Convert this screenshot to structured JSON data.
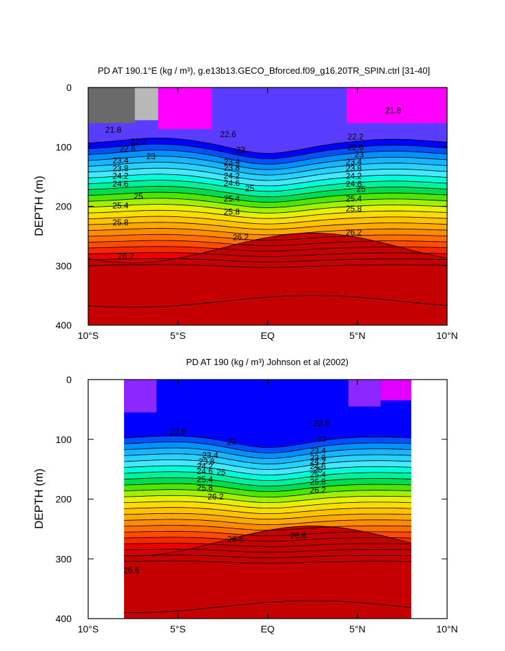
{
  "chart_data": [
    {
      "type": "contour",
      "title": "PD AT 190.1°E (kg / m³), g.e13b13.GECO_Bforced.f09_g16.20TR_SPIN.ctrl [31-40]",
      "ylabel": "DEPTH (m)",
      "xlabel": "",
      "x_ticks": [
        "10°S",
        "5°S",
        "EQ",
        "5°N",
        "10°N"
      ],
      "y_ticks": [
        "0",
        "100",
        "200",
        "300",
        "400"
      ],
      "xlim": [
        -10,
        10
      ],
      "ylim": [
        400,
        0
      ],
      "data_xlim": [
        -10,
        10
      ],
      "base_depth": 95,
      "base_value": 22.0,
      "gradient_per_m": 0.0205,
      "deep_bands": [
        [
          270,
          26.2
        ],
        [
          360,
          26.4
        ]
      ],
      "contour_labels": [
        {
          "text": "21.8",
          "x": -8.6,
          "d": 72
        },
        {
          "text": "21.8",
          "x": 7.0,
          "d": 40
        },
        {
          "text": "22.2",
          "x": -7.2,
          "d": 92
        },
        {
          "text": "22.2",
          "x": 4.9,
          "d": 84
        },
        {
          "text": "22.6",
          "x": -7.8,
          "d": 104
        },
        {
          "text": "22.6",
          "x": -2.2,
          "d": 80
        },
        {
          "text": "22.6",
          "x": 4.9,
          "d": 102
        },
        {
          "text": "23",
          "x": -6.5,
          "d": 117
        },
        {
          "text": "23",
          "x": -1.5,
          "d": 106
        },
        {
          "text": "23",
          "x": 5.1,
          "d": 114
        },
        {
          "text": "23.4",
          "x": -8.2,
          "d": 124
        },
        {
          "text": "23.4",
          "x": -2.0,
          "d": 126
        },
        {
          "text": "23.4",
          "x": 4.8,
          "d": 126
        },
        {
          "text": "23.8",
          "x": -8.2,
          "d": 137
        },
        {
          "text": "23.8",
          "x": -2.0,
          "d": 136
        },
        {
          "text": "23.8",
          "x": 4.8,
          "d": 137
        },
        {
          "text": "24.2",
          "x": -8.2,
          "d": 150
        },
        {
          "text": "24.2",
          "x": -2.0,
          "d": 150
        },
        {
          "text": "24.2",
          "x": 4.8,
          "d": 150
        },
        {
          "text": "24.6",
          "x": -8.2,
          "d": 163
        },
        {
          "text": "24.6",
          "x": -2.0,
          "d": 162
        },
        {
          "text": "24.6",
          "x": 4.8,
          "d": 163
        },
        {
          "text": "25",
          "x": -7.2,
          "d": 184
        },
        {
          "text": "25",
          "x": -1.0,
          "d": 171
        },
        {
          "text": "25",
          "x": 5.2,
          "d": 172
        },
        {
          "text": "25.4",
          "x": -8.2,
          "d": 200
        },
        {
          "text": "25.4",
          "x": -2.0,
          "d": 188
        },
        {
          "text": "25.4",
          "x": 4.8,
          "d": 188
        },
        {
          "text": "25.8",
          "x": -8.2,
          "d": 228
        },
        {
          "text": "25.8",
          "x": -2.0,
          "d": 210
        },
        {
          "text": "25.8",
          "x": 4.8,
          "d": 205
        },
        {
          "text": "26.2",
          "x": -7.9,
          "d": 285
        },
        {
          "text": "26.2",
          "x": -1.5,
          "d": 253
        },
        {
          "text": "26.2",
          "x": 4.8,
          "d": 245
        }
      ]
    },
    {
      "type": "contour",
      "title": "PD AT 190 (kg / m³) Johnson et al (2002)",
      "ylabel": "DEPTH (m)",
      "xlabel": "",
      "x_ticks": [
        "10°S",
        "5°S",
        "EQ",
        "5°N",
        "10°N"
      ],
      "y_ticks": [
        "0",
        "100",
        "200",
        "300",
        "400"
      ],
      "xlim": [
        -10,
        10
      ],
      "ylim": [
        400,
        0
      ],
      "data_xlim": [
        -8,
        8
      ],
      "base_depth": 100,
      "base_value": 22.3,
      "gradient_per_m": 0.0205,
      "deep_bands": [
        [
          270,
          26.6
        ],
        [
          380,
          26.8
        ]
      ],
      "contour_labels": [
        {
          "text": "22.6",
          "x": -5.0,
          "d": 88
        },
        {
          "text": "22.6",
          "x": 3.0,
          "d": 74
        },
        {
          "text": "23",
          "x": -2.0,
          "d": 105
        },
        {
          "text": "23",
          "x": 3.0,
          "d": 100
        },
        {
          "text": "23.4",
          "x": -3.2,
          "d": 128
        },
        {
          "text": "23.4",
          "x": 2.8,
          "d": 120
        },
        {
          "text": "23.8",
          "x": -3.4,
          "d": 138
        },
        {
          "text": "23.8",
          "x": 2.8,
          "d": 132
        },
        {
          "text": "24.2",
          "x": -3.5,
          "d": 146
        },
        {
          "text": "24.2",
          "x": 2.8,
          "d": 138
        },
        {
          "text": "24.6",
          "x": -3.5,
          "d": 154
        },
        {
          "text": "24.6",
          "x": 2.8,
          "d": 146
        },
        {
          "text": "25",
          "x": -2.6,
          "d": 156
        },
        {
          "text": "25",
          "x": 2.8,
          "d": 152
        },
        {
          "text": "25.4",
          "x": -3.5,
          "d": 168
        },
        {
          "text": "25.4",
          "x": 2.8,
          "d": 160
        },
        {
          "text": "25.8",
          "x": -3.5,
          "d": 182
        },
        {
          "text": "25.8",
          "x": 2.8,
          "d": 172
        },
        {
          "text": "26.2",
          "x": -2.9,
          "d": 197
        },
        {
          "text": "26.2",
          "x": 2.8,
          "d": 186
        },
        {
          "text": "26.6",
          "x": -1.8,
          "d": 268
        },
        {
          "text": "26.6",
          "x": 1.7,
          "d": 262
        },
        {
          "text": "26.6",
          "x": -7.6,
          "d": 320
        }
      ]
    }
  ],
  "colors": {
    "palette": [
      "#ff00ff",
      "#e100ff",
      "#b400f0",
      "#8c28ff",
      "#5a3cff",
      "#0000ff",
      "#0050ff",
      "#0090ff",
      "#18b4ff",
      "#28d2ff",
      "#46e8ff",
      "#00ffd8",
      "#00f09c",
      "#00dc50",
      "#4ee600",
      "#a0f000",
      "#e6f000",
      "#ffdc00",
      "#ffc300",
      "#ffaa00",
      "#ff8c00",
      "#ff6e00",
      "#ff4b00",
      "#f52800",
      "#ee0000",
      "#d70000",
      "#c40000"
    ],
    "cold_fill": "#6a6a6a",
    "cool_fill": "#b8b8b8"
  }
}
